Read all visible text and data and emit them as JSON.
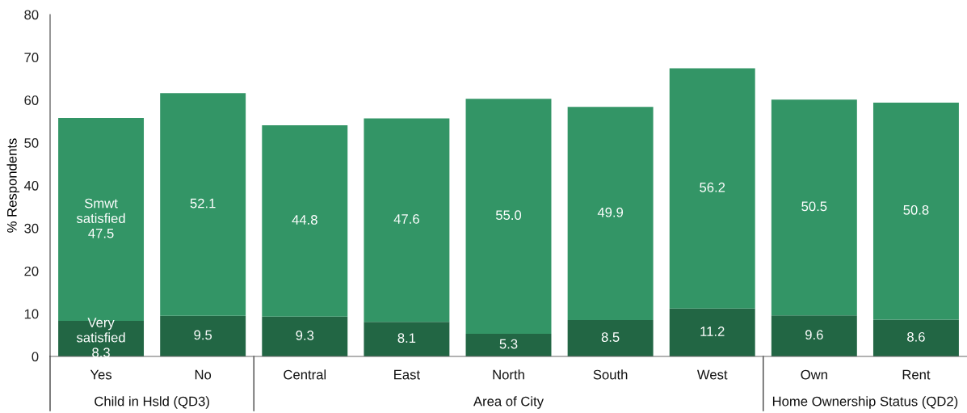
{
  "chart_data": {
    "type": "bar",
    "stacked": true,
    "ylabel": "% Respondents",
    "categories": [
      "Yes",
      "No",
      "Central",
      "East",
      "North",
      "South",
      "West",
      "Own",
      "Rent"
    ],
    "series": [
      {
        "name": "Very satisfied",
        "color": "#226644",
        "values": [
          8.3,
          9.5,
          9.3,
          8.1,
          5.3,
          8.5,
          11.2,
          9.6,
          8.6
        ],
        "value_labels": [
          "8.3",
          "9.5",
          "9.3",
          "8.1",
          "5.3",
          "8.5",
          "11.2",
          "9.6",
          "8.6"
        ]
      },
      {
        "name": "Smwt satisfied",
        "color": "#339566",
        "values": [
          47.5,
          52.1,
          44.8,
          47.6,
          55.0,
          49.9,
          56.2,
          50.5,
          50.8
        ],
        "value_labels": [
          "47.5",
          "52.1",
          "44.8",
          "47.6",
          "55.0",
          "49.9",
          "56.2",
          "50.5",
          "50.8"
        ]
      }
    ],
    "ylim": [
      0,
      80
    ],
    "yticks": [
      0,
      10,
      20,
      30,
      40,
      50,
      60,
      70,
      80
    ],
    "grid": false,
    "annotations": [
      "Child in Hsld (QD3)",
      "Area of City",
      "Home Ownership Status (QD2)"
    ]
  }
}
